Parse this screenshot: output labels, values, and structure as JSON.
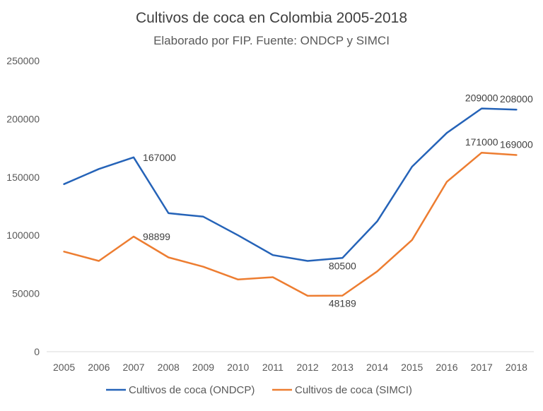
{
  "chart_data": {
    "type": "line",
    "title": "Cultivos de coca en Colombia 2005-2018",
    "subtitle": "Elaborado por FIP. Fuente: ONDCP y SIMCI",
    "xlabel": "",
    "ylabel": "",
    "ylim": [
      0,
      250000
    ],
    "yticks": [
      0,
      50000,
      100000,
      150000,
      200000,
      250000
    ],
    "grid": false,
    "legend_position": "bottom",
    "categories": [
      "2005",
      "2006",
      "2007",
      "2008",
      "2009",
      "2010",
      "2011",
      "2012",
      "2013",
      "2014",
      "2015",
      "2016",
      "2017",
      "2018"
    ],
    "series": [
      {
        "name": "Cultivos de coca (ONDCP)",
        "color": "#2563b8",
        "values": [
          144000,
          157000,
          167000,
          119000,
          116000,
          100000,
          83000,
          78000,
          80500,
          112000,
          159000,
          188000,
          209000,
          208000
        ],
        "labels": [
          {
            "index": 2,
            "text": "167000",
            "place": "right"
          },
          {
            "index": 8,
            "text": "80500",
            "place": "below"
          },
          {
            "index": 12,
            "text": "209000",
            "place": "above"
          },
          {
            "index": 13,
            "text": "208000",
            "place": "above"
          }
        ]
      },
      {
        "name": "Cultivos de coca (SIMCI)",
        "color": "#ed7d31",
        "values": [
          86000,
          78000,
          98899,
          81000,
          73000,
          62000,
          64000,
          48000,
          48189,
          69000,
          96000,
          146000,
          171000,
          169000
        ],
        "labels": [
          {
            "index": 2,
            "text": "98899",
            "place": "right"
          },
          {
            "index": 8,
            "text": "48189",
            "place": "below"
          },
          {
            "index": 12,
            "text": "171000",
            "place": "above"
          },
          {
            "index": 13,
            "text": "169000",
            "place": "above"
          }
        ]
      }
    ]
  }
}
